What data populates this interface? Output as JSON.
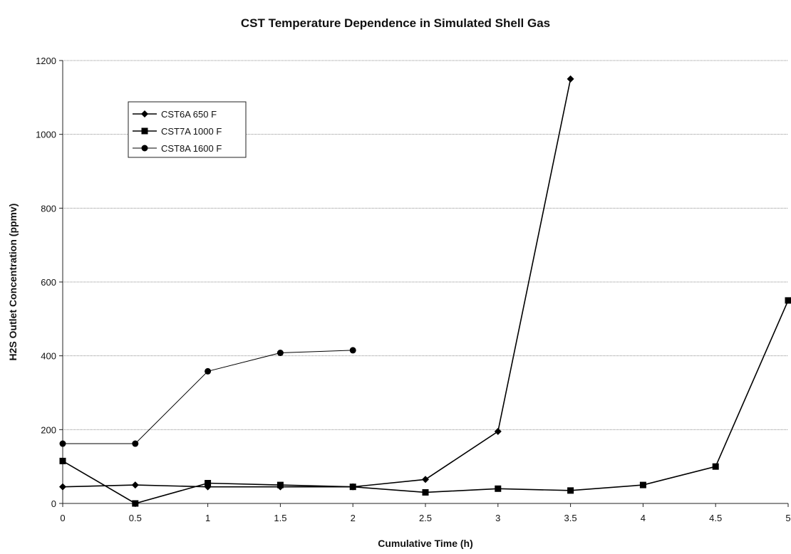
{
  "chart_data": {
    "type": "line",
    "title": "CST Temperature Dependence in Simulated Shell Gas",
    "xlabel": "Cumulative Time (h)",
    "ylabel": "H2S Outlet Concentration (ppmv)",
    "xlim": [
      0,
      5
    ],
    "ylim": [
      0,
      1200
    ],
    "x_ticks": [
      "0",
      "0.5",
      "1",
      "1.5",
      "2",
      "2.5",
      "3",
      "3.5",
      "4",
      "4.5",
      "5"
    ],
    "y_ticks": [
      "0",
      "200",
      "400",
      "600",
      "800",
      "1000",
      "1200"
    ],
    "grid": "horizontal",
    "legend_position": "top-left",
    "series": [
      {
        "name": "CST6A 650 F",
        "marker": "diamond",
        "color": "#000000",
        "x": [
          0,
          0.5,
          1,
          1.5,
          2,
          2.5,
          3,
          3.5
        ],
        "y": [
          45,
          50,
          45,
          45,
          45,
          65,
          195,
          1150
        ]
      },
      {
        "name": "CST7A 1000 F",
        "marker": "square",
        "color": "#000000",
        "x": [
          0,
          0.5,
          1,
          1.5,
          2,
          2.5,
          3,
          3.5,
          4,
          4.5,
          5
        ],
        "y": [
          115,
          0,
          55,
          50,
          45,
          30,
          40,
          35,
          50,
          100,
          550
        ]
      },
      {
        "name": "CST8A 1600 F",
        "marker": "circle",
        "color": "#000000",
        "x": [
          0,
          0.5,
          1,
          1.5,
          2
        ],
        "y": [
          162,
          162,
          358,
          408,
          415
        ]
      }
    ]
  }
}
